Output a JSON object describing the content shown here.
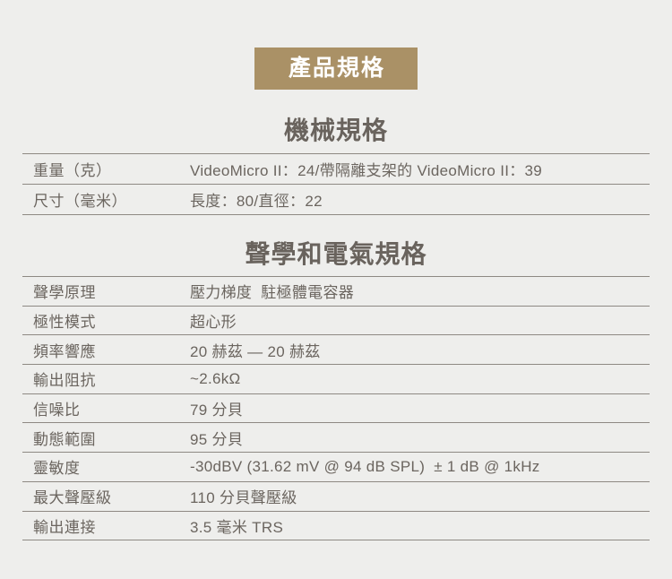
{
  "badge": {
    "label": "產品規格",
    "bg_color": "#aa9166",
    "text_color": "#ffffff"
  },
  "colors": {
    "page_background": "#eeeeec",
    "body_text": "#6b655f",
    "title_text": "#69635d",
    "divider_line": "#8e8983"
  },
  "sections": [
    {
      "title": "機械規格",
      "rows": [
        {
          "label": "重量（克）",
          "value": "VideoMicro II：24/帶隔離支架的 VideoMicro II：39"
        },
        {
          "label": "尺寸（毫米）",
          "value": "長度：80/直徑：22"
        }
      ]
    },
    {
      "title": "聲學和電氣規格",
      "rows": [
        {
          "label": "聲學原理",
          "value": "壓力梯度  駐極體電容器"
        },
        {
          "label": "極性模式",
          "value": "超心形"
        },
        {
          "label": "頻率響應",
          "value": "20 赫茲 — 20 赫茲"
        },
        {
          "label": "輸出阻抗",
          "value": "~2.6kΩ"
        },
        {
          "label": "信噪比",
          "value": "79 分貝"
        },
        {
          "label": "動態範圍",
          "value": "95 分貝"
        },
        {
          "label": "靈敏度",
          "value": "-30dBV (31.62 mV @ 94 dB SPL)  ± 1 dB @ 1kHz"
        },
        {
          "label": "最大聲壓級",
          "value": "110 分貝聲壓級"
        },
        {
          "label": "輸出連接",
          "value": "3.5 毫米 TRS"
        }
      ]
    }
  ]
}
